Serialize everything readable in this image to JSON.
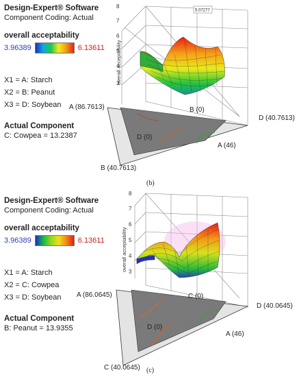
{
  "chart_data": [
    {
      "type": "surface",
      "caption": "(b)",
      "software": "Design-Expert® Software",
      "coding": "Component Coding: Actual",
      "response": "overall acceptability",
      "color_range": {
        "low": "3.96389",
        "high": "6.13611"
      },
      "factors": [
        "X1 = A: Starch",
        "X2 = B: Peanut",
        "X3 = D: Soybean"
      ],
      "actual_component_heading": "Actual Component",
      "actual_component": "C: Cowpea = 13.2387",
      "zlabel": "overall acceptability",
      "zticks": [
        "8",
        "7",
        "6",
        "5",
        "4",
        "3"
      ],
      "zlim": [
        3,
        8
      ],
      "flag_value": "5.07277",
      "vertex_labels": {
        "a": "A (86.7613)",
        "b_zero": "B (0)",
        "d": "D (40.7613)",
        "d_zero": "D (0)",
        "a46": "A (46)",
        "b": "B (40.7613)"
      }
    },
    {
      "type": "surface",
      "caption": "(c)",
      "software": "Design-Expert® Software",
      "coding": "Component Coding: Actual",
      "response": "overall acceptability",
      "color_range": {
        "low": "3.96389",
        "high": "6.13611"
      },
      "factors": [
        "X1 = A: Starch",
        "X2 = C: Cowpea",
        "X3 = D: Soybean"
      ],
      "actual_component_heading": "Actual Component",
      "actual_component": "B: Peanut = 13.9355",
      "zlabel": "overall acceptability",
      "zticks": [
        "8",
        "7",
        "6",
        "5",
        "4",
        "3"
      ],
      "zlim": [
        3,
        8
      ],
      "vertex_labels": {
        "a": "A (86.0645)",
        "c_zero": "C (0)",
        "d": "D (40.0645)",
        "d_zero": "D (0)",
        "a46": "A (46)",
        "c": "C (40.0645)"
      }
    }
  ]
}
